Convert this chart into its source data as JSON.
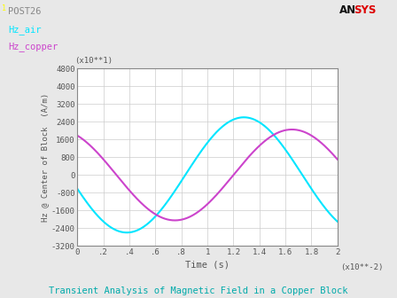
{
  "title_top_left": "POST26",
  "legend_labels": [
    "Hz_air",
    "Hz_copper"
  ],
  "legend_colors": [
    "#00e5ff",
    "#cc44cc"
  ],
  "xlabel": "Time (s)",
  "ylabel": "Hz @ Center of Block  (A/m)",
  "ylabel_scale_label": "(x10**1)",
  "xlabel_scale_label": "(x10**-2)",
  "xmin": 0,
  "xmax": 2.0,
  "ymin": -3200,
  "ymax": 4800,
  "yticks": [
    -3200,
    -2400,
    -1600,
    -800,
    0,
    800,
    1600,
    2400,
    3200,
    4000,
    4800
  ],
  "xticks": [
    0,
    0.2,
    0.4,
    0.6,
    0.8,
    1.0,
    1.2,
    1.4,
    1.6,
    1.8,
    2.0
  ],
  "xtick_labels": [
    "0",
    ".2",
    ".4",
    ".6",
    ".8",
    "1",
    "1.2",
    "1.4",
    "1.6",
    "1.8",
    "2"
  ],
  "background_color": "#e8e8e8",
  "plot_bg_color": "#ffffff",
  "grid_color": "#cccccc",
  "bottom_title": "Transient Analysis of Magnetic Field in a Copper Block",
  "line_width": 1.5,
  "hz_air_amplitude": 2600,
  "hz_air_omega": 3.4906585,
  "hz_air_phi": -2.9321531,
  "hz_copper_amplitude": 2050,
  "hz_copper_omega": 3.4906585,
  "hz_copper_phi": -3.7306585
}
